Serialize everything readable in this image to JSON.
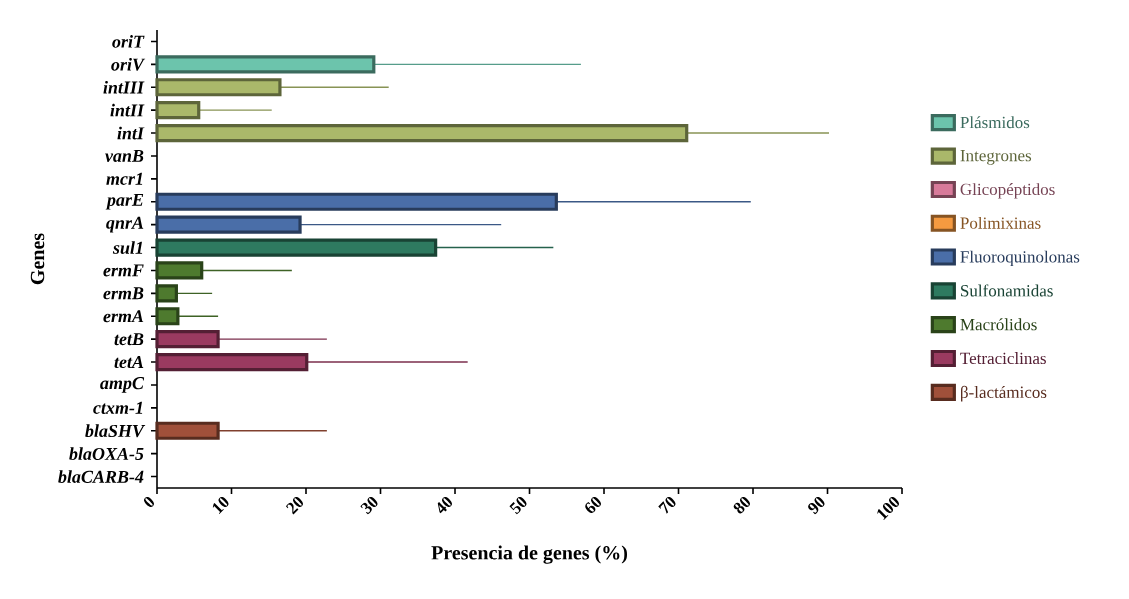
{
  "chart_data": {
    "type": "bar",
    "orientation": "horizontal",
    "xlabel": "Presencia de genes (%)",
    "ylabel": "Genes",
    "categories": [
      "oriT",
      "oriV",
      "intIII",
      "intII",
      "intI",
      "vanB",
      "mcr1",
      "parE",
      "qnrA",
      "sul1",
      "ermF",
      "ermB",
      "ermA",
      "tetB",
      "tetA",
      "ampC",
      "ctxm-1",
      "blaSHV",
      "blaOXA-5",
      "blaCARB-4"
    ],
    "series": [
      {
        "name": "Plásmidos",
        "color": "#6cc4ac",
        "values": [
          0,
          29.1,
          null,
          null,
          null,
          null,
          null,
          null,
          null,
          null,
          null,
          null,
          null,
          null,
          null,
          null,
          null,
          null,
          null,
          null
        ],
        "errors": [
          null,
          [
            29.1,
            56.9
          ],
          null,
          null,
          null,
          null,
          null,
          null,
          null,
          null,
          null,
          null,
          null,
          null,
          null,
          null,
          null,
          null,
          null,
          null
        ]
      },
      {
        "name": "Integrones",
        "color": "#aab86a",
        "values": [
          null,
          null,
          16.5,
          5.6,
          71.1,
          null,
          null,
          null,
          null,
          null,
          null,
          null,
          null,
          null,
          null,
          null,
          null,
          null,
          null,
          null
        ],
        "errors": [
          null,
          null,
          [
            16.5,
            31.1
          ],
          [
            5.6,
            15.4
          ],
          [
            71.1,
            90.2
          ],
          null,
          null,
          null,
          null,
          null,
          null,
          null,
          null,
          null,
          null,
          null,
          null,
          null,
          null,
          null
        ]
      },
      {
        "name": "Glicopéptidos",
        "color": "#d87a9a",
        "values": [
          null,
          null,
          null,
          null,
          null,
          0,
          null,
          null,
          null,
          null,
          null,
          null,
          null,
          null,
          null,
          null,
          null,
          null,
          null,
          null
        ]
      },
      {
        "name": "Polimixinas",
        "color": "#f59a40",
        "values": [
          null,
          null,
          null,
          null,
          null,
          null,
          0,
          null,
          null,
          null,
          null,
          null,
          null,
          null,
          null,
          null,
          null,
          null,
          null,
          null
        ]
      },
      {
        "name": "Fluoroquinolonas",
        "color": "#4a6ea8",
        "values": [
          null,
          null,
          null,
          null,
          null,
          null,
          null,
          53.6,
          19.2,
          null,
          null,
          null,
          null,
          null,
          null,
          null,
          null,
          null,
          null,
          null
        ],
        "errors": [
          null,
          null,
          null,
          null,
          null,
          null,
          null,
          [
            53.6,
            79.7
          ],
          [
            19.2,
            46.2
          ],
          null,
          null,
          null,
          null,
          null,
          null,
          null,
          null,
          null,
          null,
          null
        ]
      },
      {
        "name": "Sulfonamidas",
        "color": "#2e7a60",
        "values": [
          null,
          null,
          null,
          null,
          null,
          null,
          null,
          null,
          null,
          37.4,
          null,
          null,
          null,
          null,
          null,
          null,
          null,
          null,
          null,
          null
        ],
        "errors": [
          null,
          null,
          null,
          null,
          null,
          null,
          null,
          null,
          null,
          [
            37.4,
            53.2
          ],
          null,
          null,
          null,
          null,
          null,
          null,
          null,
          null,
          null,
          null
        ]
      },
      {
        "name": "Macrólidos",
        "color": "#4e7a2e",
        "values": [
          null,
          null,
          null,
          null,
          null,
          null,
          null,
          null,
          null,
          null,
          6.0,
          2.6,
          2.8,
          null,
          null,
          null,
          null,
          null,
          null,
          null
        ],
        "errors": [
          null,
          null,
          null,
          null,
          null,
          null,
          null,
          null,
          null,
          null,
          [
            6.0,
            18.1
          ],
          [
            2.6,
            7.4
          ],
          [
            2.8,
            8.2
          ],
          null,
          null,
          null,
          null,
          null,
          null,
          null
        ]
      },
      {
        "name": "Tetraciclinas",
        "color": "#9a3a60",
        "values": [
          null,
          null,
          null,
          null,
          null,
          null,
          null,
          null,
          null,
          null,
          null,
          null,
          null,
          8.2,
          20.1,
          null,
          null,
          null,
          null,
          null
        ],
        "errors": [
          null,
          null,
          null,
          null,
          null,
          null,
          null,
          null,
          null,
          null,
          null,
          null,
          null,
          [
            8.2,
            22.8
          ],
          [
            20.1,
            41.7
          ],
          null,
          null,
          null,
          null,
          null
        ]
      },
      {
        "name": "β-lactámicos",
        "color": "#a0503a",
        "values": [
          null,
          null,
          null,
          null,
          null,
          null,
          null,
          null,
          null,
          null,
          null,
          null,
          null,
          null,
          null,
          0,
          0,
          8.2,
          0,
          0
        ],
        "errors": [
          null,
          null,
          null,
          null,
          null,
          null,
          null,
          null,
          null,
          null,
          null,
          null,
          null,
          null,
          null,
          null,
          null,
          [
            8.2,
            22.8
          ],
          null,
          null
        ]
      }
    ],
    "xlim": [
      0,
      100
    ],
    "xticks": [
      0,
      10,
      20,
      30,
      40,
      50,
      60,
      70,
      80,
      90,
      100
    ],
    "grid": false,
    "legend": "right"
  }
}
